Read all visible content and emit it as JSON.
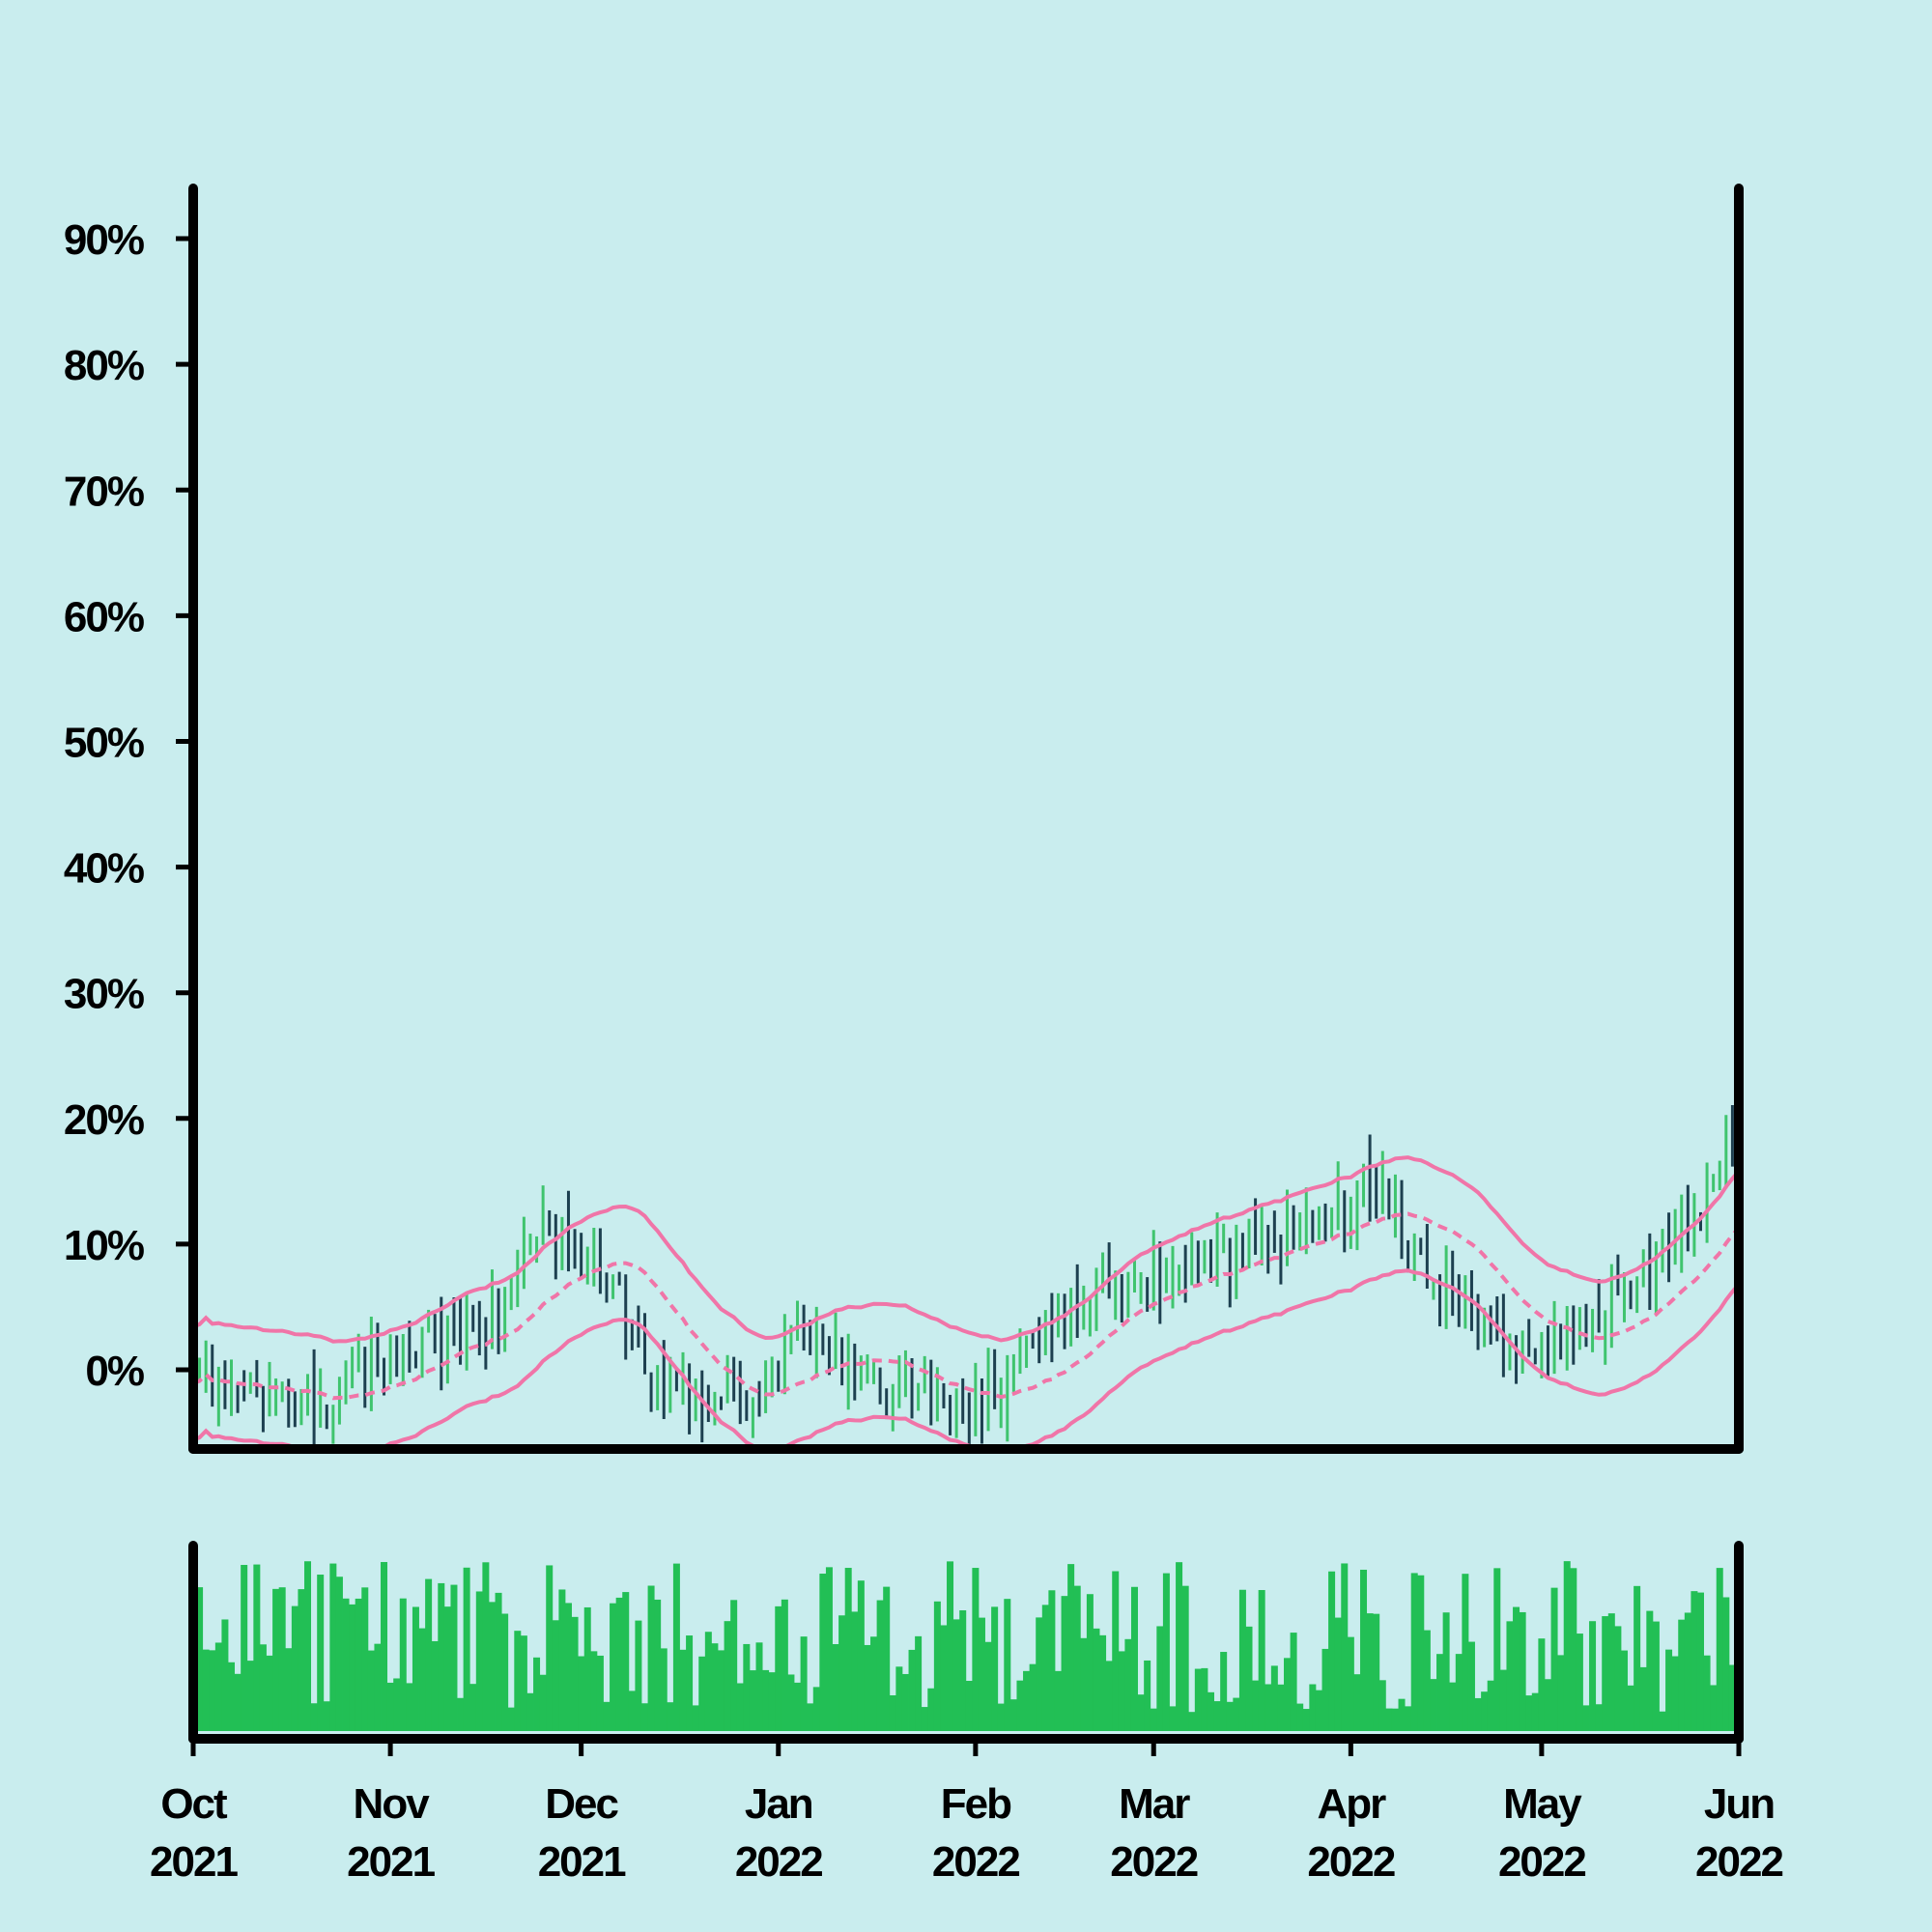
{
  "chart_data": {
    "type": "ohlc",
    "title": "",
    "xlabel": "",
    "ylabel": "",
    "x_range": [
      "2021-10-01",
      "2022-06-01"
    ],
    "y_range": [
      -6,
      94
    ],
    "y_ticks": [
      0,
      10,
      20,
      30,
      40,
      50,
      60,
      70,
      80,
      90
    ],
    "y_tick_labels": [
      "0%",
      "10%",
      "20%",
      "30%",
      "40%",
      "50%",
      "60%",
      "70%",
      "80%",
      "90%"
    ],
    "x_ticks": [
      {
        "date": "2021-10-01",
        "month": "Oct",
        "year": "2021"
      },
      {
        "date": "2021-11-01",
        "month": "Nov",
        "year": "2021"
      },
      {
        "date": "2021-12-01",
        "month": "Dec",
        "year": "2021"
      },
      {
        "date": "2022-01-01",
        "month": "Jan",
        "year": "2022"
      },
      {
        "date": "2022-02-01",
        "month": "Feb",
        "year": "2022"
      },
      {
        "date": "2022-03-01",
        "month": "Mar",
        "year": "2022"
      },
      {
        "date": "2022-04-01",
        "month": "Apr",
        "year": "2022"
      },
      {
        "date": "2022-05-01",
        "month": "May",
        "year": "2022"
      },
      {
        "date": "2022-06-01",
        "month": "Jun",
        "year": "2022"
      }
    ],
    "grid": false,
    "legend": "none",
    "price_anchors": [
      {
        "date": "2021-10-01",
        "value": -1
      },
      {
        "date": "2021-10-20",
        "value": -3
      },
      {
        "date": "2021-11-01",
        "value": 1
      },
      {
        "date": "2021-11-15",
        "value": 3
      },
      {
        "date": "2021-11-25",
        "value": 11
      },
      {
        "date": "2021-12-05",
        "value": 7
      },
      {
        "date": "2021-12-15",
        "value": -3
      },
      {
        "date": "2021-12-25",
        "value": -2
      },
      {
        "date": "2022-01-05",
        "value": 2
      },
      {
        "date": "2022-01-18",
        "value": -1
      },
      {
        "date": "2022-02-01",
        "value": -3
      },
      {
        "date": "2022-02-12",
        "value": 4
      },
      {
        "date": "2022-02-25",
        "value": 7
      },
      {
        "date": "2022-03-10",
        "value": 9
      },
      {
        "date": "2022-03-25",
        "value": 11
      },
      {
        "date": "2022-04-05",
        "value": 14
      },
      {
        "date": "2022-04-15",
        "value": 7
      },
      {
        "date": "2022-04-25",
        "value": 2
      },
      {
        "date": "2022-05-05",
        "value": 3
      },
      {
        "date": "2022-05-15",
        "value": 7
      },
      {
        "date": "2022-05-25",
        "value": 12
      },
      {
        "date": "2022-06-01",
        "value": 18
      }
    ],
    "bollinger": {
      "center": "dashed",
      "band_width": 4.5
    },
    "volume": {
      "type": "bar",
      "relative": true
    },
    "colors": {
      "background": "#c9edee",
      "up": "#3fc46e",
      "down": "#1d4050",
      "bands": "#f075a8",
      "volume": "#22bf55",
      "axis": "#000000"
    }
  }
}
